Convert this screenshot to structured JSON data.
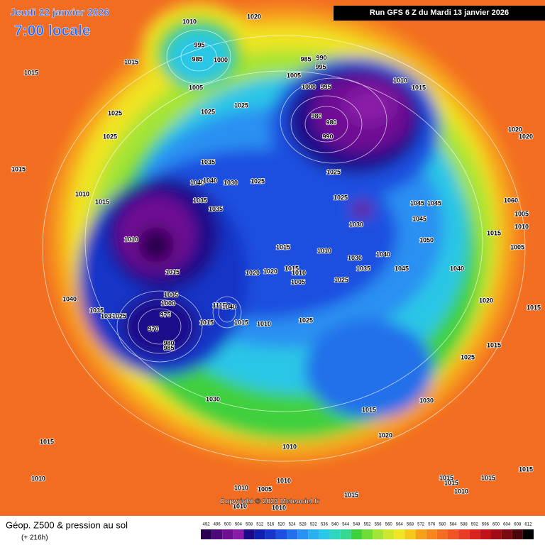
{
  "header": {
    "date": "Jeudi 22 janvier 2026",
    "time": "7:00 locale",
    "run": "Run GFS 6 Z du Mardi 13 janvier 2026"
  },
  "footer": {
    "title": "Géop. Z500 & pression au sol",
    "lead": "(+ 216h)",
    "copyright": "Copyright © 2026 Meteociel.fr"
  },
  "scale": {
    "values": [
      492,
      496,
      500,
      504,
      508,
      512,
      516,
      520,
      524,
      528,
      532,
      536,
      540,
      544,
      548,
      552,
      556,
      560,
      564,
      568,
      572,
      576,
      580,
      584,
      588,
      592,
      596,
      600,
      604,
      608,
      612
    ],
    "colors": [
      "#2a0050",
      "#4b0a78",
      "#6e0f93",
      "#8a1aa8",
      "#1a0a8a",
      "#0f20b0",
      "#1735c8",
      "#1d4fe0",
      "#2470ea",
      "#2a90f2",
      "#29b0ee",
      "#29c6e6",
      "#2ed6c0",
      "#36d890",
      "#3fd03e",
      "#70dc36",
      "#a4e434",
      "#cde62e",
      "#f0e424",
      "#f5c81e",
      "#f7a11a",
      "#f5871c",
      "#f26d22",
      "#ee5424",
      "#e83c24",
      "#d8241e",
      "#c0121a",
      "#a00c14",
      "#780a10",
      "#4c060a",
      "#000000"
    ]
  },
  "isobars": [
    "1015",
    "1015",
    "1010",
    "1020",
    "995",
    "985",
    "1000",
    "1005",
    "1025",
    "1025",
    "1025",
    "1025",
    "985",
    "990",
    "995",
    "1005",
    "1000",
    "995",
    "1010",
    "1015",
    "980",
    "980",
    "990",
    "1025",
    "1025",
    "1030",
    "1020",
    "1020",
    "1015",
    "1010",
    "1015",
    "1035",
    "1040",
    "1040",
    "1030",
    "1025",
    "1035",
    "1035",
    "1010",
    "1015",
    "1010",
    "1030",
    "1040",
    "1045",
    "1035",
    "1025",
    "1020",
    "1020",
    "1015",
    "1010",
    "1005",
    "1045",
    "1045",
    "1045",
    "1050",
    "1040",
    "1060",
    "1005",
    "1010",
    "1015",
    "1005",
    "1015",
    "1005",
    "1000",
    "975",
    "970",
    "980",
    "985",
    "1040",
    "1035",
    "1030",
    "1025",
    "1115",
    "1040",
    "1015",
    "1015",
    "1010",
    "1025",
    "1020",
    "1015",
    "1015",
    "1025",
    "1015",
    "1030",
    "1030",
    "1015",
    "1010",
    "1020",
    "1010",
    "1015",
    "1015",
    "1015",
    "1015",
    "1010",
    "1015",
    "1010",
    "1005",
    "1010",
    "1010",
    "1010"
  ]
}
